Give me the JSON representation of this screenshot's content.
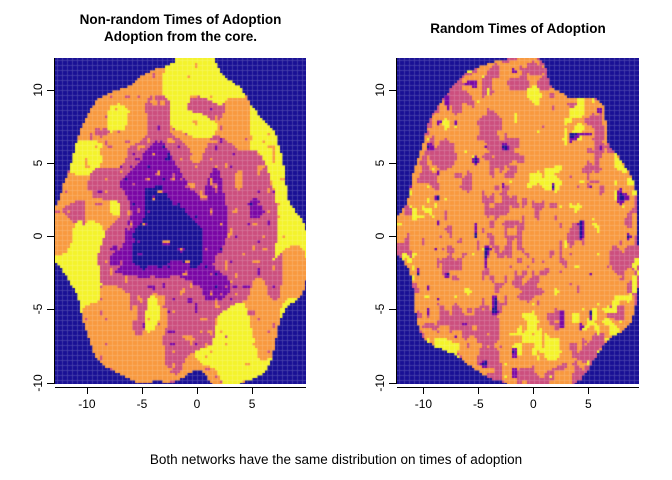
{
  "page": {
    "background_color": "#FFFFFF",
    "caption": "Both networks have the same distribution on times of adoption"
  },
  "palette": {
    "classes": [
      "#191095",
      "#7A06A5",
      "#CC4F7E",
      "#F8993F",
      "#F4F32B"
    ],
    "class_names": [
      "navy (earliest / background)",
      "purple (early)",
      "mauve-pink (middle)",
      "orange (late)",
      "yellow (latest)"
    ],
    "background": "#191095",
    "text_color": "#000000"
  },
  "chart_data": [
    {
      "type": "heatmap",
      "panel": "left",
      "title": "Non-random Times of Adoption\nAdoption from the core.",
      "title_line1": "Non-random Times of Adoption",
      "title_line2": "Adoption from the core.",
      "x_ticks": [
        -10,
        -5,
        0,
        5
      ],
      "y_ticks": [
        -10,
        -5,
        0,
        5,
        10
      ],
      "xlim": [
        -12.9,
        9.9
      ],
      "ylim": [
        -10.1,
        12.2
      ],
      "grid": false,
      "legend": "none",
      "pattern": "radial-core-early",
      "blob": {
        "cx": -1.5,
        "cy": 0.9,
        "r": 11.3
      },
      "seed": 3,
      "description": "Pixelated adoption-time map: dark navy/purple core of earliest adopters at the centre, mauve-pink mid ring, orange outer ring with large yellow late-adoption patches; navy background outside the network blob (corners)."
    },
    {
      "type": "heatmap",
      "panel": "right",
      "title": "Random Times of Adoption",
      "title_line1": "Random Times of Adoption",
      "x_ticks": [
        -10,
        -5,
        0,
        5
      ],
      "y_ticks": [
        -10,
        -5,
        0,
        5,
        10
      ],
      "xlim": [
        -12.4,
        9.6
      ],
      "ylim": [
        -10.1,
        12.2
      ],
      "grid": false,
      "legend": "none",
      "pattern": "spatial-random",
      "blob": {
        "cx": -1.4,
        "cy": 0.2,
        "r": 10.9
      },
      "seed": 7,
      "description": "Pixelated adoption-time map with no spatial trend: orange-dominated lumpy disc speckled with mauve-pink patches, small purple and navy spots and yellow flecks; navy background outside the disc."
    }
  ]
}
